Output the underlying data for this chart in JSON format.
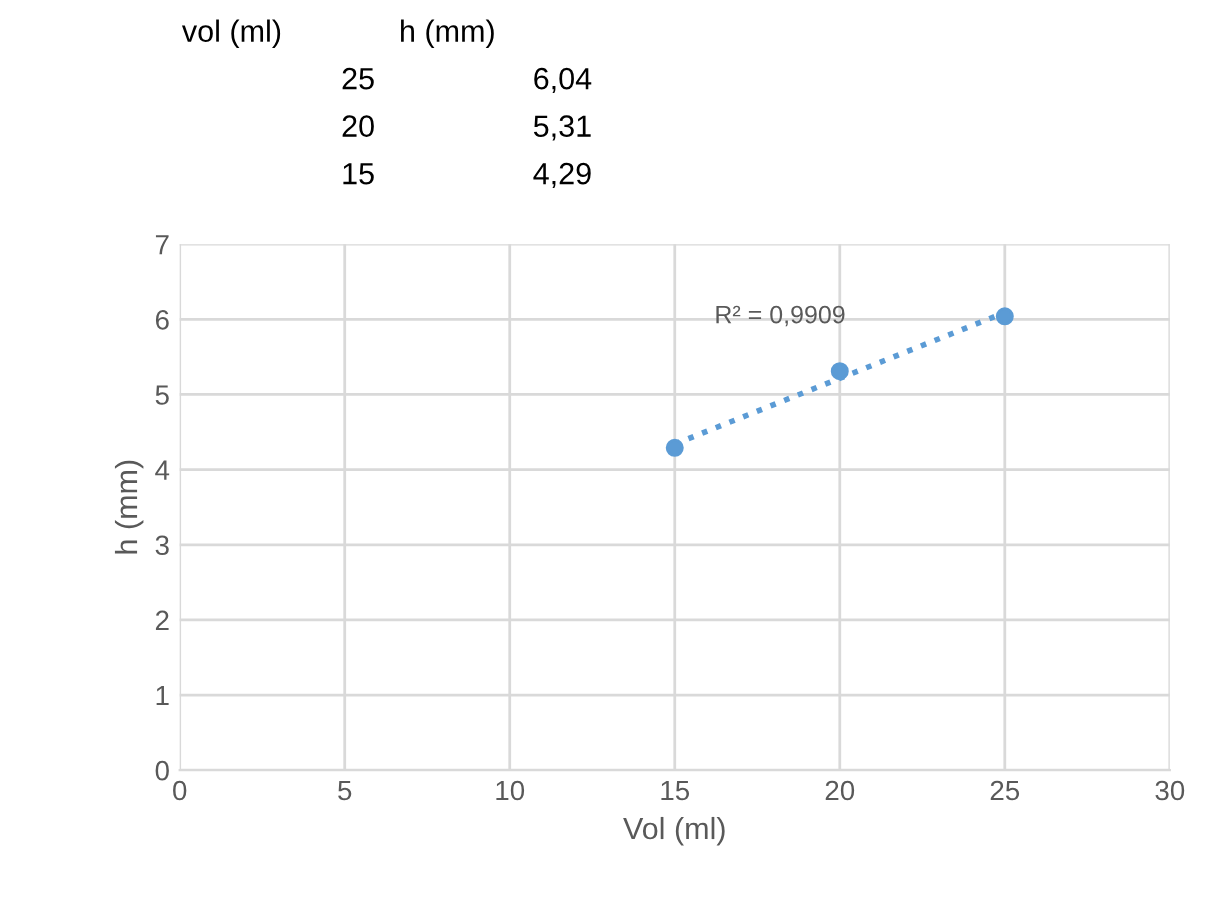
{
  "chart_data": [
    {
      "type": "other",
      "annotations": [
        "vol (ml)",
        "h (mm)",
        "25",
        "6,04",
        "20",
        "5,31",
        "15",
        "4,29"
      ]
    },
    {
      "type": "scatter",
      "xlabel": "Vol (ml)",
      "ylabel": "h (mm)",
      "annotations": [
        "R² = 0,9909"
      ],
      "series": [
        {
          "color": "#5b9bd5",
          "x": [
            25,
            20,
            15
          ],
          "values": [
            6.04,
            5.31,
            4.29
          ],
          "marker": "circle"
        },
        {
          "type": "line",
          "color": "#5b9bd5",
          "x": [
            15,
            25
          ],
          "values": [
            4.34,
            6.09
          ],
          "line_style": "dotted",
          "marker": "none"
        }
      ],
      "xlim": [
        0,
        30
      ],
      "xticks": [
        0,
        5,
        10,
        15,
        20,
        25,
        30
      ],
      "ylim": [
        0,
        7
      ],
      "yticks": [
        0,
        1,
        2,
        3,
        4,
        5,
        6,
        7
      ],
      "grid": true
    }
  ]
}
